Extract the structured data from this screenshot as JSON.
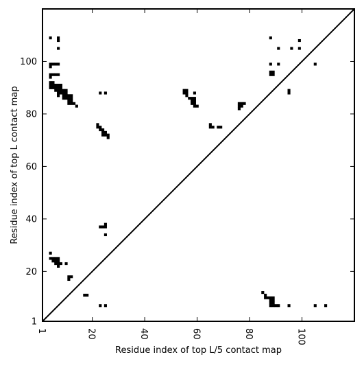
{
  "chart_data": {
    "type": "heatmap",
    "title": "",
    "xlabel": "Residue index of top L/5 contact map",
    "ylabel": "Residue index of top L contact map",
    "xlim": [
      1,
      120
    ],
    "ylim": [
      1,
      120
    ],
    "xticks": [
      1,
      20,
      40,
      60,
      80,
      100
    ],
    "xtick_labels": [
      "1",
      "20",
      "40",
      "60",
      "80",
      "100"
    ],
    "yticks": [
      1,
      20,
      40,
      60,
      80,
      100
    ],
    "ytick_labels": [
      "1",
      "20",
      "40",
      "60",
      "80",
      "100"
    ],
    "x_tick_label_rotation": -90,
    "diagonal": true,
    "cell_color": "#000000",
    "background": "#ffffff",
    "upper_contacts_top_L": [
      [
        4,
        109
      ],
      [
        7,
        109
      ],
      [
        7,
        108
      ],
      [
        7,
        105
      ],
      [
        4,
        99
      ],
      [
        5,
        99
      ],
      [
        6,
        99
      ],
      [
        7,
        99
      ],
      [
        4,
        98
      ],
      [
        4,
        95
      ],
      [
        5,
        95
      ],
      [
        6,
        95
      ],
      [
        7,
        95
      ],
      [
        4,
        94
      ],
      [
        4,
        92
      ],
      [
        5,
        92
      ],
      [
        4,
        91
      ],
      [
        5,
        91
      ],
      [
        6,
        91
      ],
      [
        7,
        91
      ],
      [
        8,
        91
      ],
      [
        4,
        90
      ],
      [
        5,
        90
      ],
      [
        6,
        90
      ],
      [
        7,
        90
      ],
      [
        8,
        90
      ],
      [
        6,
        89
      ],
      [
        7,
        89
      ],
      [
        8,
        89
      ],
      [
        9,
        89
      ],
      [
        10,
        89
      ],
      [
        7,
        88
      ],
      [
        8,
        88
      ],
      [
        9,
        88
      ],
      [
        10,
        88
      ],
      [
        7,
        87
      ],
      [
        9,
        87
      ],
      [
        10,
        87
      ],
      [
        11,
        87
      ],
      [
        12,
        87
      ],
      [
        9,
        86
      ],
      [
        10,
        86
      ],
      [
        11,
        86
      ],
      [
        12,
        86
      ],
      [
        11,
        85
      ],
      [
        12,
        85
      ],
      [
        11,
        84
      ],
      [
        12,
        84
      ],
      [
        13,
        84
      ],
      [
        14,
        83
      ],
      [
        23,
        88
      ],
      [
        25,
        88
      ],
      [
        22,
        76
      ],
      [
        22,
        75
      ],
      [
        23,
        75
      ],
      [
        23,
        74
      ],
      [
        24,
        74
      ],
      [
        24,
        73
      ],
      [
        25,
        73
      ],
      [
        24,
        72
      ],
      [
        25,
        72
      ],
      [
        26,
        72
      ],
      [
        26,
        71
      ],
      [
        23,
        37
      ],
      [
        24,
        37
      ],
      [
        25,
        37
      ],
      [
        25,
        38
      ],
      [
        25,
        34
      ],
      [
        55,
        89
      ],
      [
        56,
        89
      ],
      [
        55,
        88
      ],
      [
        56,
        88
      ],
      [
        56,
        87
      ],
      [
        59,
        88
      ],
      [
        57,
        86
      ],
      [
        58,
        86
      ],
      [
        59,
        86
      ],
      [
        58,
        85
      ],
      [
        59,
        85
      ],
      [
        58,
        84
      ],
      [
        59,
        84
      ],
      [
        59,
        83
      ],
      [
        60,
        83
      ],
      [
        65,
        76
      ],
      [
        65,
        75
      ],
      [
        66,
        75
      ],
      [
        68,
        75
      ],
      [
        69,
        75
      ],
      [
        76,
        84
      ],
      [
        77,
        84
      ],
      [
        78,
        84
      ],
      [
        76,
        83
      ],
      [
        77,
        83
      ],
      [
        76,
        82
      ],
      [
        88,
        109
      ],
      [
        99,
        108
      ],
      [
        91,
        105
      ],
      [
        96,
        105
      ],
      [
        99,
        105
      ],
      [
        105,
        99
      ],
      [
        88,
        99
      ],
      [
        91,
        99
      ],
      [
        88,
        96
      ],
      [
        89,
        96
      ],
      [
        88,
        95
      ],
      [
        89,
        95
      ],
      [
        95,
        89
      ],
      [
        95,
        88
      ],
      [
        4,
        27
      ],
      [
        4,
        25
      ],
      [
        5,
        25
      ],
      [
        6,
        25
      ],
      [
        7,
        25
      ],
      [
        5,
        24
      ],
      [
        6,
        24
      ],
      [
        7,
        24
      ],
      [
        6,
        23
      ],
      [
        7,
        23
      ],
      [
        8,
        23
      ],
      [
        10,
        23
      ],
      [
        7,
        22
      ],
      [
        11,
        18
      ],
      [
        12,
        18
      ],
      [
        11,
        17
      ],
      [
        17,
        11
      ],
      [
        18,
        11
      ],
      [
        23,
        7
      ],
      [
        25,
        7
      ],
      [
        85,
        12
      ],
      [
        86,
        11
      ],
      [
        86,
        10
      ],
      [
        87,
        10
      ],
      [
        88,
        10
      ],
      [
        89,
        10
      ],
      [
        88,
        9
      ],
      [
        89,
        9
      ],
      [
        88,
        8
      ],
      [
        89,
        8
      ],
      [
        88,
        7
      ],
      [
        89,
        7
      ],
      [
        90,
        7
      ],
      [
        91,
        7
      ],
      [
        95,
        7
      ],
      [
        105,
        7
      ],
      [
        109,
        7
      ]
    ]
  }
}
